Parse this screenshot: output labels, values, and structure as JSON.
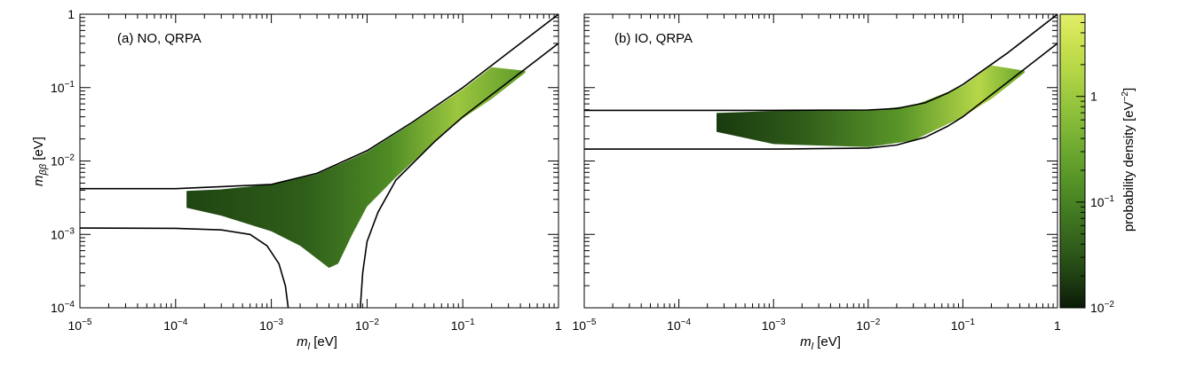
{
  "chart_data": {
    "type": "heatmap",
    "x_scale": "log",
    "y_scale": "log",
    "xlim": [
      1e-05,
      1
    ],
    "ylim": [
      0.0001,
      1
    ],
    "x_ticks": [
      {
        "value": 1e-05,
        "base": "10",
        "exp": "−5"
      },
      {
        "value": 0.0001,
        "base": "10",
        "exp": "−4"
      },
      {
        "value": 0.001,
        "base": "10",
        "exp": "−3"
      },
      {
        "value": 0.01,
        "base": "10",
        "exp": "−2"
      },
      {
        "value": 0.1,
        "base": "10",
        "exp": "−1"
      },
      {
        "value": 1,
        "base": "1",
        "exp": ""
      }
    ],
    "y_ticks": [
      {
        "value": 0.0001,
        "base": "10",
        "exp": "−4"
      },
      {
        "value": 0.001,
        "base": "10",
        "exp": "−3"
      },
      {
        "value": 0.01,
        "base": "10",
        "exp": "−2"
      },
      {
        "value": 0.1,
        "base": "10",
        "exp": "−1"
      },
      {
        "value": 1,
        "base": "1",
        "exp": ""
      }
    ],
    "xlabel": {
      "main": "m",
      "sub": "l",
      "unit": " [eV]"
    },
    "ylabel": {
      "main": "m",
      "sub": "ββ",
      "unit": " [eV]"
    },
    "panels": [
      {
        "id": "no",
        "label": "(a) NO, QRPA",
        "boundary_curves": [
          {
            "name": "upper",
            "points": [
              [
                1e-05,
                0.0042
              ],
              [
                0.0001,
                0.0042
              ],
              [
                0.001,
                0.0048
              ],
              [
                0.003,
                0.0068
              ],
              [
                0.01,
                0.0138
              ],
              [
                0.03,
                0.034
              ],
              [
                0.1,
                0.1
              ],
              [
                0.3,
                0.3
              ],
              [
                1,
                1
              ]
            ]
          },
          {
            "name": "lower-left",
            "points": [
              [
                1e-05,
                0.00122
              ],
              [
                0.0001,
                0.00121
              ],
              [
                0.0003,
                0.00115
              ],
              [
                0.0006,
                0.001
              ],
              [
                0.0009,
                0.0007
              ],
              [
                0.0012,
                0.0004
              ],
              [
                0.0014,
                0.0002
              ],
              [
                0.0015,
                0.0001
              ]
            ]
          },
          {
            "name": "lower-right",
            "points": [
              [
                0.0085,
                0.0001
              ],
              [
                0.009,
                0.0003
              ],
              [
                0.01,
                0.0008
              ],
              [
                0.013,
                0.002
              ],
              [
                0.02,
                0.0055
              ],
              [
                0.05,
                0.018
              ],
              [
                0.1,
                0.04
              ],
              [
                0.3,
                0.12
              ],
              [
                1,
                0.4
              ]
            ]
          }
        ],
        "density_band": {
          "upper": [
            [
              0.00013,
              0.0039
            ],
            [
              0.0003,
              0.0041
            ],
            [
              0.001,
              0.0048
            ],
            [
              0.003,
              0.0066
            ],
            [
              0.01,
              0.0133
            ],
            [
              0.03,
              0.033
            ],
            [
              0.1,
              0.095
            ],
            [
              0.2,
              0.19
            ],
            [
              0.45,
              0.17
            ]
          ],
          "lower": [
            [
              0.00013,
              0.0023
            ],
            [
              0.0003,
              0.0018
            ],
            [
              0.001,
              0.0011
            ],
            [
              0.002,
              0.0007
            ],
            [
              0.004,
              0.00035
            ],
            [
              0.005,
              0.0004
            ],
            [
              0.007,
              0.001
            ],
            [
              0.01,
              0.0024
            ],
            [
              0.02,
              0.006
            ],
            [
              0.05,
              0.018
            ],
            [
              0.1,
              0.038
            ],
            [
              0.2,
              0.07
            ],
            [
              0.45,
              0.16
            ]
          ]
        }
      },
      {
        "id": "io",
        "label": "(b) IO, QRPA",
        "boundary_curves": [
          {
            "name": "upper",
            "points": [
              [
                1e-05,
                0.049
              ],
              [
                0.001,
                0.049
              ],
              [
                0.01,
                0.0495
              ],
              [
                0.02,
                0.052
              ],
              [
                0.04,
                0.062
              ],
              [
                0.07,
                0.085
              ],
              [
                0.1,
                0.11
              ],
              [
                0.3,
                0.3
              ],
              [
                1,
                1
              ]
            ]
          },
          {
            "name": "lower",
            "points": [
              [
                1e-05,
                0.0145
              ],
              [
                0.001,
                0.0145
              ],
              [
                0.01,
                0.015
              ],
              [
                0.02,
                0.0165
              ],
              [
                0.04,
                0.021
              ],
              [
                0.07,
                0.03
              ],
              [
                0.1,
                0.04
              ],
              [
                0.3,
                0.12
              ],
              [
                1,
                0.4
              ]
            ]
          }
        ],
        "density_band": {
          "upper": [
            [
              0.00025,
              0.045
            ],
            [
              0.001,
              0.048
            ],
            [
              0.01,
              0.049
            ],
            [
              0.03,
              0.057
            ],
            [
              0.1,
              0.105
            ],
            [
              0.2,
              0.2
            ],
            [
              0.45,
              0.17
            ]
          ],
          "lower": [
            [
              0.00025,
              0.025
            ],
            [
              0.001,
              0.017
            ],
            [
              0.01,
              0.0155
            ],
            [
              0.03,
              0.019
            ],
            [
              0.1,
              0.04
            ],
            [
              0.2,
              0.07
            ],
            [
              0.45,
              0.16
            ]
          ]
        }
      }
    ],
    "colorbar": {
      "label": "probability density [eV",
      "label_sup": "−2",
      "label_close": "]",
      "scale": "log",
      "range": [
        0.01,
        6
      ],
      "ticks": [
        {
          "value": 1,
          "base": "1",
          "exp": ""
        },
        {
          "value": 0.1,
          "base": "10",
          "exp": "−1"
        },
        {
          "value": 0.01,
          "base": "10",
          "exp": "−2"
        }
      ],
      "colors": [
        "#0b1a08",
        "#1e3e12",
        "#2f5c1a",
        "#3e7420",
        "#4f8c25",
        "#64a12c",
        "#7cb535",
        "#97c53d",
        "#b2d546",
        "#cbe14f",
        "#e3ee6a"
      ]
    }
  }
}
